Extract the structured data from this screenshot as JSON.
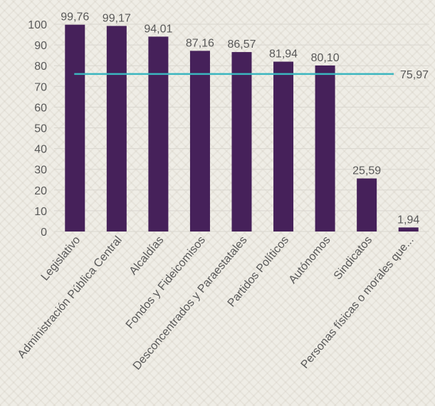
{
  "chart_data": {
    "type": "bar",
    "title": "",
    "xlabel": "",
    "ylabel": "",
    "ylim": [
      0,
      100
    ],
    "yticks": [
      0,
      10,
      20,
      30,
      40,
      50,
      60,
      70,
      80,
      90,
      100
    ],
    "grid": true,
    "legend": "none",
    "categories": [
      "Legislativo",
      "Administración Pública Central",
      "Alcaldías",
      "Fondos y Fideicomisos",
      "Desconcentrados y Paraestatales",
      "Partidos Políticos",
      "Autónomos",
      "Sindicatos",
      "Personas físicas o morales que..."
    ],
    "values": [
      99.76,
      99.17,
      94.01,
      87.16,
      86.57,
      81.94,
      80.1,
      25.59,
      1.94
    ],
    "value_labels": [
      "99,76",
      "99,17",
      "94,01",
      "87,16",
      "86,57",
      "81,94",
      "80,10",
      "25,59",
      "1,94"
    ],
    "reference_line": {
      "value": 75.97,
      "label": "75,97"
    },
    "colors": {
      "bar": "#46215a",
      "reference_line": "#3bb6bf",
      "text": "#595959"
    }
  }
}
